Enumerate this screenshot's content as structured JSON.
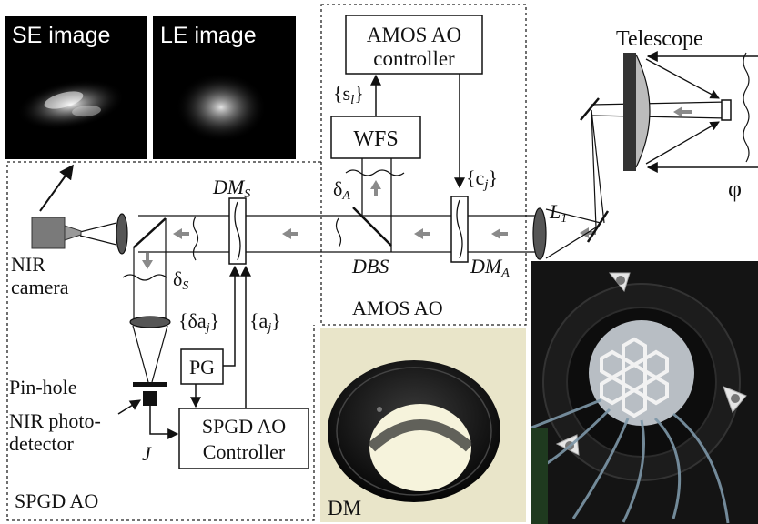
{
  "images": {
    "se_image": "SE image",
    "le_image": "LE image",
    "dm_photo": "DM"
  },
  "blocks": {
    "amos_controller_line1": "AMOS AO",
    "amos_controller_line2": "controller",
    "wfs": "WFS",
    "pg": "PG",
    "spgd_controller_line1": "SPGD AO",
    "spgd_controller_line2": "Controller"
  },
  "labels": {
    "telescope": "Telescope",
    "phi": "φ",
    "l1_main": "L",
    "l1_sub": "1",
    "sl": "{s",
    "sl_sub": "l",
    "sl_close": "}",
    "cj": "{c",
    "cj_sub": "j",
    "cj_close": "}",
    "delta_a": "δ",
    "delta_a_sub": "A",
    "dbs": "DBS",
    "dma": "DM",
    "dma_sub": "A",
    "dms": "DM",
    "dms_sub": "S",
    "delta_s": "δ",
    "delta_s_sub": "S",
    "nir_camera_line1": "NIR",
    "nir_camera_line2": "camera",
    "da_j": "{δa",
    "da_j_sub": "j",
    "da_j_close": "}",
    "a_j": "{a",
    "a_j_sub": "j",
    "a_j_close": "}",
    "amos_ao": "AMOS AO",
    "spgd_ao": "SPGD AO",
    "pinhole": "Pin-hole",
    "nir_detector_line1": "NIR photo-",
    "nir_detector_line2": "detector",
    "J": "J"
  },
  "colors": {
    "line": "#111111",
    "arrow_gray": "#8a8a8a",
    "camera_gray": "#7a7a7a",
    "photo_bg": "#000000",
    "dm_photo_bg": "#e9e5c9",
    "mount_black": "#141414"
  }
}
